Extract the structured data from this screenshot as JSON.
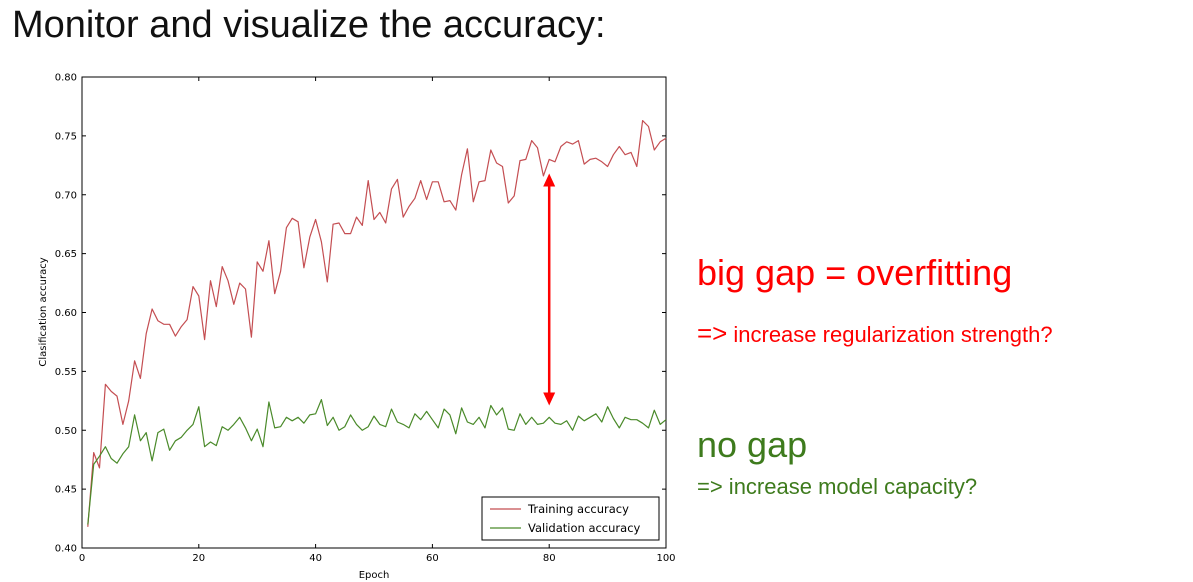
{
  "slide": {
    "title": "Monitor and visualize the accuracy:"
  },
  "annotations": {
    "overfit_heading": "big gap = overfitting",
    "overfit_arrow": "=>",
    "overfit_suggestion": "increase regularization strength?",
    "nogap_heading": "no gap",
    "nogap_suggestion": "=> increase model capacity?",
    "overfit_color": "#ff0000",
    "nogap_color": "#3e7b1d"
  },
  "chart_data": {
    "type": "line",
    "xlabel": "Epoch",
    "ylabel": "Clasification accuracy",
    "xlim": [
      0,
      100
    ],
    "ylim": [
      0.4,
      0.8
    ],
    "xticks": [
      0,
      20,
      40,
      60,
      80,
      100
    ],
    "yticks": [
      0.4,
      0.45,
      0.5,
      0.55,
      0.6,
      0.65,
      0.7,
      0.75,
      0.8
    ],
    "x_tick_labels": [
      "0",
      "20",
      "40",
      "60",
      "80",
      "100"
    ],
    "y_tick_labels": [
      "0.40",
      "0.45",
      "0.50",
      "0.55",
      "0.60",
      "0.65",
      "0.70",
      "0.75",
      "0.80"
    ],
    "grid": false,
    "legend_position": "bottom-right",
    "series": [
      {
        "name": "Training accuracy",
        "color": "#c44e52",
        "x": [
          1,
          2,
          3,
          4,
          5,
          6,
          7,
          8,
          9,
          10,
          11,
          12,
          13,
          14,
          15,
          16,
          17,
          18,
          19,
          20,
          21,
          22,
          23,
          24,
          25,
          26,
          27,
          28,
          29,
          30,
          31,
          32,
          33,
          34,
          35,
          36,
          37,
          38,
          39,
          40,
          41,
          42,
          43,
          44,
          45,
          46,
          47,
          48,
          49,
          50,
          51,
          52,
          53,
          54,
          55,
          56,
          57,
          58,
          59,
          60,
          61,
          62,
          63,
          64,
          65,
          66,
          67,
          68,
          69,
          70,
          71,
          72,
          73,
          74,
          75,
          76,
          77,
          78,
          79,
          80,
          81,
          82,
          83,
          84,
          85,
          86,
          87,
          88,
          89,
          90,
          91,
          92,
          93,
          94,
          95,
          96,
          97,
          98,
          99,
          100
        ],
        "values": [
          0.418,
          0.481,
          0.468,
          0.539,
          0.533,
          0.529,
          0.505,
          0.525,
          0.559,
          0.544,
          0.582,
          0.603,
          0.593,
          0.59,
          0.59,
          0.58,
          0.588,
          0.594,
          0.622,
          0.614,
          0.577,
          0.627,
          0.605,
          0.639,
          0.627,
          0.607,
          0.625,
          0.62,
          0.579,
          0.643,
          0.635,
          0.661,
          0.616,
          0.635,
          0.672,
          0.68,
          0.677,
          0.638,
          0.664,
          0.679,
          0.66,
          0.626,
          0.675,
          0.676,
          0.667,
          0.667,
          0.681,
          0.674,
          0.712,
          0.679,
          0.685,
          0.676,
          0.705,
          0.713,
          0.681,
          0.69,
          0.697,
          0.712,
          0.696,
          0.711,
          0.711,
          0.694,
          0.695,
          0.687,
          0.717,
          0.739,
          0.694,
          0.711,
          0.712,
          0.738,
          0.727,
          0.724,
          0.693,
          0.699,
          0.729,
          0.73,
          0.746,
          0.74,
          0.716,
          0.73,
          0.728,
          0.741,
          0.745,
          0.743,
          0.746,
          0.726,
          0.73,
          0.731,
          0.728,
          0.724,
          0.734,
          0.741,
          0.734,
          0.736,
          0.724,
          0.763,
          0.758,
          0.738,
          0.745,
          0.748
        ]
      },
      {
        "name": "Validation accuracy",
        "color": "#4a8a2a",
        "x": [
          1,
          2,
          3,
          4,
          5,
          6,
          7,
          8,
          9,
          10,
          11,
          12,
          13,
          14,
          15,
          16,
          17,
          18,
          19,
          20,
          21,
          22,
          23,
          24,
          25,
          26,
          27,
          28,
          29,
          30,
          31,
          32,
          33,
          34,
          35,
          36,
          37,
          38,
          39,
          40,
          41,
          42,
          43,
          44,
          45,
          46,
          47,
          48,
          49,
          50,
          51,
          52,
          53,
          54,
          55,
          56,
          57,
          58,
          59,
          60,
          61,
          62,
          63,
          64,
          65,
          66,
          67,
          68,
          69,
          70,
          71,
          72,
          73,
          74,
          75,
          76,
          77,
          78,
          79,
          80,
          81,
          82,
          83,
          84,
          85,
          86,
          87,
          88,
          89,
          90,
          91,
          92,
          93,
          94,
          95,
          96,
          97,
          98,
          99,
          100
        ],
        "values": [
          0.42,
          0.471,
          0.478,
          0.486,
          0.476,
          0.472,
          0.48,
          0.486,
          0.513,
          0.491,
          0.498,
          0.474,
          0.498,
          0.501,
          0.483,
          0.491,
          0.494,
          0.5,
          0.505,
          0.52,
          0.486,
          0.49,
          0.487,
          0.503,
          0.5,
          0.505,
          0.511,
          0.502,
          0.491,
          0.501,
          0.486,
          0.524,
          0.502,
          0.503,
          0.511,
          0.508,
          0.511,
          0.506,
          0.513,
          0.514,
          0.526,
          0.504,
          0.511,
          0.5,
          0.503,
          0.513,
          0.505,
          0.5,
          0.503,
          0.512,
          0.505,
          0.503,
          0.518,
          0.507,
          0.505,
          0.502,
          0.514,
          0.509,
          0.516,
          0.509,
          0.502,
          0.518,
          0.513,
          0.497,
          0.519,
          0.507,
          0.505,
          0.511,
          0.502,
          0.521,
          0.513,
          0.519,
          0.501,
          0.5,
          0.514,
          0.505,
          0.511,
          0.505,
          0.506,
          0.511,
          0.506,
          0.505,
          0.508,
          0.5,
          0.512,
          0.508,
          0.511,
          0.514,
          0.507,
          0.52,
          0.51,
          0.502,
          0.511,
          0.509,
          0.509,
          0.506,
          0.502,
          0.517,
          0.505,
          0.509
        ]
      }
    ],
    "gap_arrow": {
      "x": 80,
      "y_from": 0.718,
      "y_to": 0.521,
      "color": "#ff0000"
    }
  }
}
